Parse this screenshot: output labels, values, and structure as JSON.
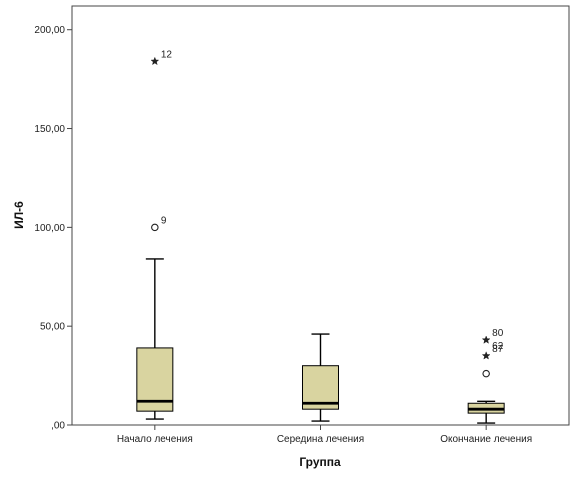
{
  "chart_data": {
    "type": "boxplot",
    "xlabel": "Группа",
    "ylabel": "ИЛ-6",
    "ylim": [
      0,
      212
    ],
    "yticks": [
      0,
      50,
      100,
      150,
      200
    ],
    "ytick_labels": [
      ",00",
      "50,00",
      "100,00",
      "150,00",
      "200,00"
    ],
    "grid": false,
    "categories": [
      "Начало лечения",
      "Середина лечения",
      "Окончание лечения"
    ],
    "box_fill": "#d9d4a0",
    "boxes": [
      {
        "category": "Начало лечения",
        "whisker_low": 3,
        "q1": 7,
        "median": 12,
        "q3": 39,
        "whisker_high": 84,
        "outliers": [
          {
            "value": 100,
            "label": "9",
            "marker": "circle"
          },
          {
            "value": 184,
            "label": "12",
            "marker": "star"
          }
        ]
      },
      {
        "category": "Середина лечения",
        "whisker_low": 2,
        "q1": 8,
        "median": 11,
        "q3": 30,
        "whisker_high": 46,
        "outliers": []
      },
      {
        "category": "Окончание лечения",
        "whisker_low": 1,
        "q1": 6,
        "median": 8,
        "q3": 11,
        "whisker_high": 12,
        "outliers": [
          {
            "value": 26,
            "label": "",
            "marker": "circle"
          },
          {
            "value": 35,
            "label": "87",
            "marker": "star"
          },
          {
            "value": 43,
            "label": "80",
            "marker": "star"
          }
        ]
      }
    ],
    "outlier_side_labels": [
      {
        "category": "Окончание лечения",
        "value": 40,
        "label": "62"
      }
    ]
  }
}
